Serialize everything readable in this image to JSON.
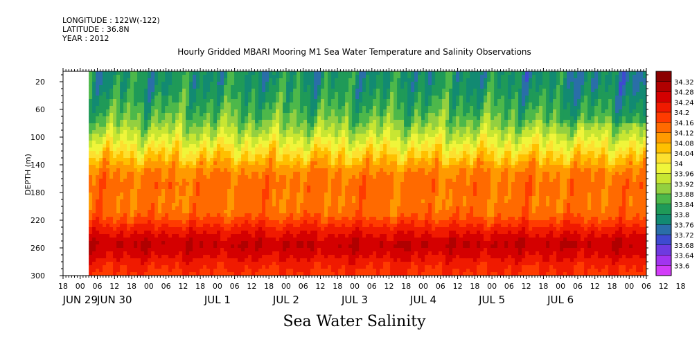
{
  "header": {
    "longitude": "LONGITUDE : 122W(-122)",
    "latitude": "LATITUDE : 36.8N",
    "year": "YEAR : 2012"
  },
  "chart_data": {
    "type": "heatmap",
    "title": "Hourly Gridded MBARI Mooring M1 Sea Water Temperature and Salinity Observations",
    "xlabel": "Sea Water Salinity",
    "ylabel": "DEPTH (m)",
    "x_range_hours": [
      0,
      204
    ],
    "x_data_start_hour": 9,
    "y_range": [
      300,
      5
    ],
    "y_ticks": [
      20,
      60,
      100,
      140,
      180,
      220,
      260,
      300
    ],
    "x_hour_ticks": [
      "18",
      "00",
      "06",
      "12",
      "18",
      "00",
      "06",
      "12",
      "18",
      "00",
      "06",
      "12",
      "18",
      "00",
      "06",
      "12",
      "18",
      "00",
      "06",
      "12",
      "18",
      "00",
      "06",
      "12",
      "18",
      "00",
      "06",
      "12",
      "18",
      "00",
      "06",
      "12",
      "18",
      "00",
      "06",
      "12",
      "18"
    ],
    "x_date_labels": [
      {
        "label": "JUN 29",
        "hour": 6
      },
      {
        "label": "JUN 30",
        "hour": 18
      },
      {
        "label": "JUL  1",
        "hour": 54
      },
      {
        "label": "JUL  2",
        "hour": 78
      },
      {
        "label": "JUL  3",
        "hour": 102
      },
      {
        "label": "JUL  4",
        "hour": 126
      },
      {
        "label": "JUL  5",
        "hour": 150
      },
      {
        "label": "JUL  6",
        "hour": 174
      }
    ],
    "colorbar_levels": [
      "34.32",
      "34.28",
      "34.24",
      "34.2",
      "34.16",
      "34.12",
      "34.08",
      "34.04",
      "34",
      "33.96",
      "33.92",
      "33.88",
      "33.84",
      "33.8",
      "33.76",
      "33.72",
      "33.68",
      "33.64",
      "33.6"
    ],
    "colorbar_colors": [
      "#8b0000",
      "#b00000",
      "#d40000",
      "#f01a00",
      "#ff3b00",
      "#ff6a00",
      "#ff9a00",
      "#ffc000",
      "#fde02f",
      "#f0f53a",
      "#c8e632",
      "#93d040",
      "#4db84a",
      "#1f9a58",
      "#128a72",
      "#2a6ea8",
      "#3e4ad0",
      "#6e3ae0",
      "#a234f0",
      "#d23cf8"
    ],
    "depth_profile": [
      {
        "depth": 10,
        "salinity": 33.8
      },
      {
        "depth": 20,
        "salinity": 33.8
      },
      {
        "depth": 40,
        "salinity": 33.82
      },
      {
        "depth": 60,
        "salinity": 33.85
      },
      {
        "depth": 80,
        "salinity": 33.89
      },
      {
        "depth": 100,
        "salinity": 33.95
      },
      {
        "depth": 120,
        "salinity": 34.02
      },
      {
        "depth": 135,
        "salinity": 34.07
      },
      {
        "depth": 150,
        "salinity": 34.12
      },
      {
        "depth": 170,
        "salinity": 34.14
      },
      {
        "depth": 190,
        "salinity": 34.13
      },
      {
        "depth": 210,
        "salinity": 34.14
      },
      {
        "depth": 225,
        "salinity": 34.19
      },
      {
        "depth": 240,
        "salinity": 34.24
      },
      {
        "depth": 255,
        "salinity": 34.28
      },
      {
        "depth": 270,
        "salinity": 34.25
      },
      {
        "depth": 285,
        "salinity": 34.21
      },
      {
        "depth": 300,
        "salinity": 34.19
      }
    ]
  }
}
